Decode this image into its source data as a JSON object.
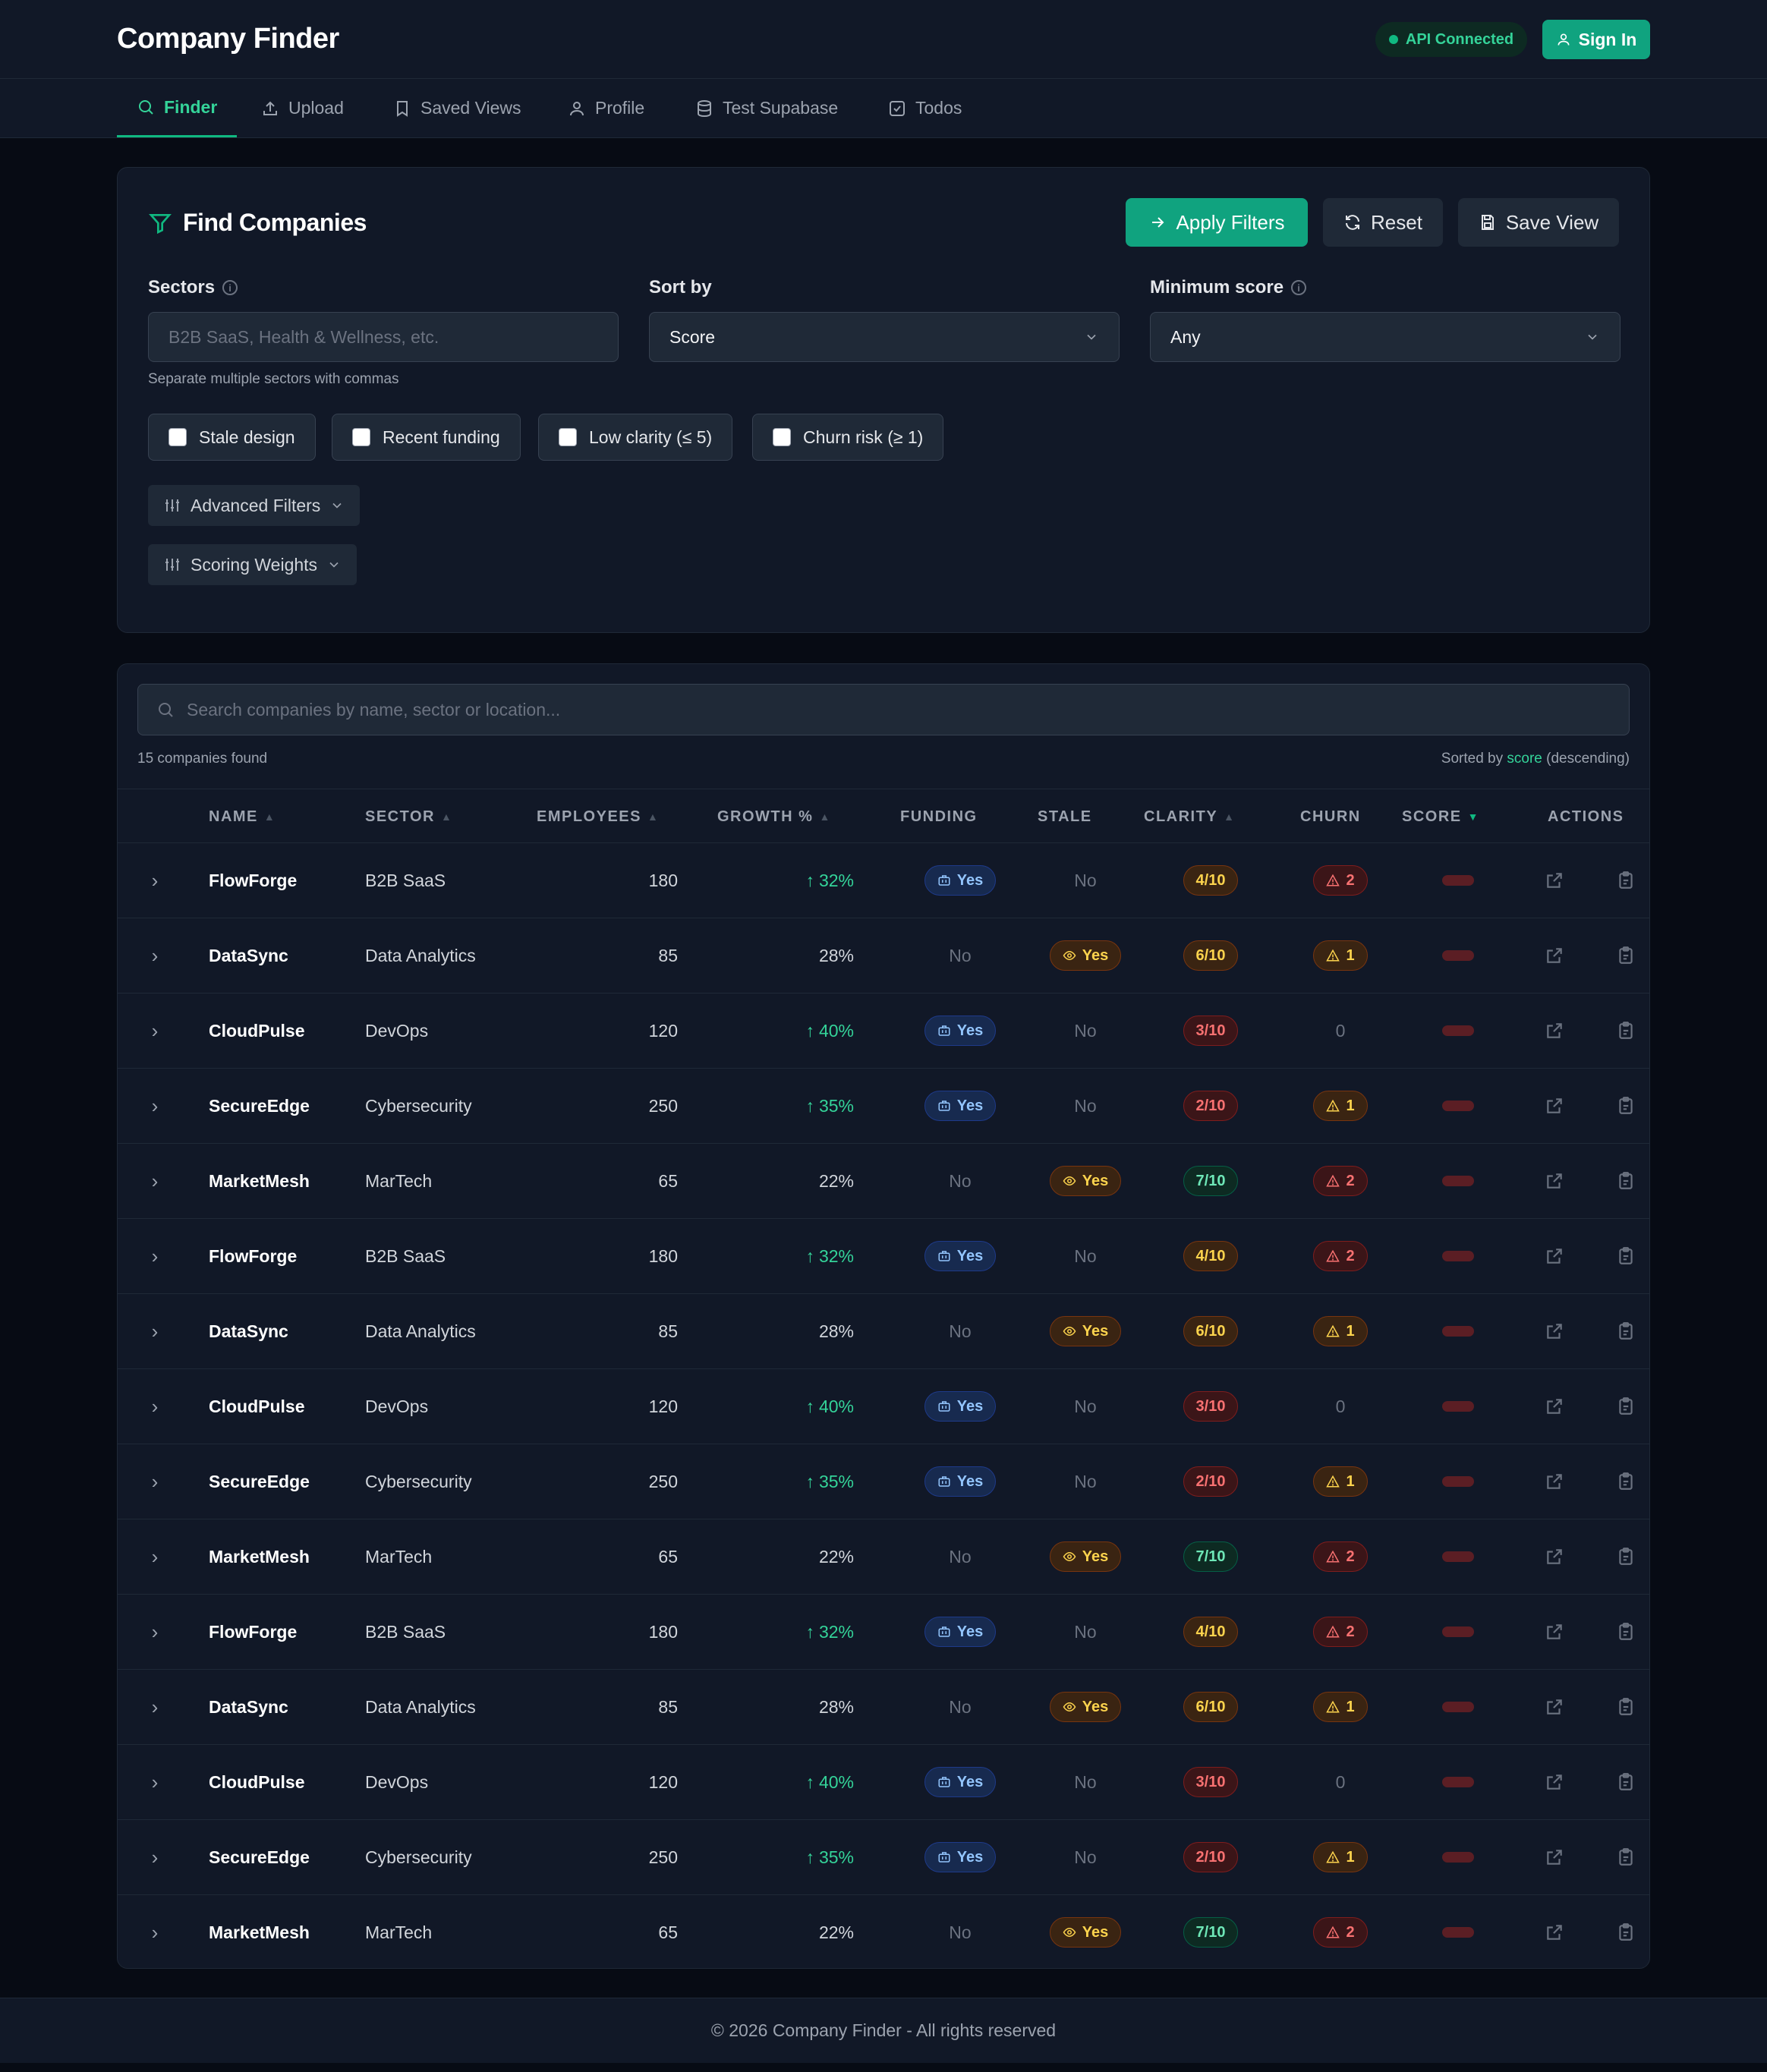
{
  "header": {
    "title": "Company Finder",
    "api_status": "API Connected",
    "signin_label": "Sign In"
  },
  "nav": {
    "tabs": [
      {
        "label": "Finder",
        "icon": "search-icon",
        "active": true
      },
      {
        "label": "Upload",
        "icon": "upload-icon",
        "active": false
      },
      {
        "label": "Saved Views",
        "icon": "bookmark-icon",
        "active": false
      },
      {
        "label": "Profile",
        "icon": "user-icon",
        "active": false
      },
      {
        "label": "Test Supabase",
        "icon": "database-icon",
        "active": false
      },
      {
        "label": "Todos",
        "icon": "checkbox-icon",
        "active": false
      }
    ]
  },
  "filters": {
    "title": "Find Companies",
    "apply_label": "Apply Filters",
    "reset_label": "Reset",
    "save_label": "Save View",
    "sectors_label": "Sectors",
    "sectors_placeholder": "B2B SaaS, Health & Wellness, etc.",
    "sectors_helper": "Separate multiple sectors with commas",
    "sort_label": "Sort by",
    "sort_value": "Score",
    "min_score_label": "Minimum score",
    "min_score_value": "Any",
    "checkboxes": [
      "Stale design",
      "Recent funding",
      "Low clarity (≤ 5)",
      "Churn risk (≥ 1)"
    ],
    "advanced_label": "Advanced Filters",
    "weights_label": "Scoring Weights"
  },
  "results": {
    "search_placeholder": "Search companies by name, sector or location...",
    "count_text": "15 companies found",
    "sorted_prefix": "Sorted by",
    "sorted_field": "score",
    "sorted_suffix": "(descending)",
    "columns": [
      "NAME",
      "SECTOR",
      "EMPLOYEES",
      "GROWTH %",
      "FUNDING",
      "STALE",
      "CLARITY",
      "CHURN",
      "SCORE",
      "ACTIONS"
    ],
    "rows": [
      {
        "name": "FlowForge",
        "sector": "B2B SaaS",
        "employees": "180",
        "growth": "32%",
        "growth_up": true,
        "funding": "Yes",
        "stale": "No",
        "clarity": "4/10",
        "clarity_level": "amber",
        "churn": "2",
        "churn_level": "red"
      },
      {
        "name": "DataSync",
        "sector": "Data Analytics",
        "employees": "85",
        "growth": "28%",
        "growth_up": false,
        "funding": "No",
        "stale": "Yes",
        "clarity": "6/10",
        "clarity_level": "amber",
        "churn": "1",
        "churn_level": "amber"
      },
      {
        "name": "CloudPulse",
        "sector": "DevOps",
        "employees": "120",
        "growth": "40%",
        "growth_up": true,
        "funding": "Yes",
        "stale": "No",
        "clarity": "3/10",
        "clarity_level": "red",
        "churn": "0",
        "churn_level": "none"
      },
      {
        "name": "SecureEdge",
        "sector": "Cybersecurity",
        "employees": "250",
        "growth": "35%",
        "growth_up": true,
        "funding": "Yes",
        "stale": "No",
        "clarity": "2/10",
        "clarity_level": "red",
        "churn": "1",
        "churn_level": "amber"
      },
      {
        "name": "MarketMesh",
        "sector": "MarTech",
        "employees": "65",
        "growth": "22%",
        "growth_up": false,
        "funding": "No",
        "stale": "Yes",
        "clarity": "7/10",
        "clarity_level": "green",
        "churn": "2",
        "churn_level": "red"
      },
      {
        "name": "FlowForge",
        "sector": "B2B SaaS",
        "employees": "180",
        "growth": "32%",
        "growth_up": true,
        "funding": "Yes",
        "stale": "No",
        "clarity": "4/10",
        "clarity_level": "amber",
        "churn": "2",
        "churn_level": "red"
      },
      {
        "name": "DataSync",
        "sector": "Data Analytics",
        "employees": "85",
        "growth": "28%",
        "growth_up": false,
        "funding": "No",
        "stale": "Yes",
        "clarity": "6/10",
        "clarity_level": "amber",
        "churn": "1",
        "churn_level": "amber"
      },
      {
        "name": "CloudPulse",
        "sector": "DevOps",
        "employees": "120",
        "growth": "40%",
        "growth_up": true,
        "funding": "Yes",
        "stale": "No",
        "clarity": "3/10",
        "clarity_level": "red",
        "churn": "0",
        "churn_level": "none"
      },
      {
        "name": "SecureEdge",
        "sector": "Cybersecurity",
        "employees": "250",
        "growth": "35%",
        "growth_up": true,
        "funding": "Yes",
        "stale": "No",
        "clarity": "2/10",
        "clarity_level": "red",
        "churn": "1",
        "churn_level": "amber"
      },
      {
        "name": "MarketMesh",
        "sector": "MarTech",
        "employees": "65",
        "growth": "22%",
        "growth_up": false,
        "funding": "No",
        "stale": "Yes",
        "clarity": "7/10",
        "clarity_level": "green",
        "churn": "2",
        "churn_level": "red"
      },
      {
        "name": "FlowForge",
        "sector": "B2B SaaS",
        "employees": "180",
        "growth": "32%",
        "growth_up": true,
        "funding": "Yes",
        "stale": "No",
        "clarity": "4/10",
        "clarity_level": "amber",
        "churn": "2",
        "churn_level": "red"
      },
      {
        "name": "DataSync",
        "sector": "Data Analytics",
        "employees": "85",
        "growth": "28%",
        "growth_up": false,
        "funding": "No",
        "stale": "Yes",
        "clarity": "6/10",
        "clarity_level": "amber",
        "churn": "1",
        "churn_level": "amber"
      },
      {
        "name": "CloudPulse",
        "sector": "DevOps",
        "employees": "120",
        "growth": "40%",
        "growth_up": true,
        "funding": "Yes",
        "stale": "No",
        "clarity": "3/10",
        "clarity_level": "red",
        "churn": "0",
        "churn_level": "none"
      },
      {
        "name": "SecureEdge",
        "sector": "Cybersecurity",
        "employees": "250",
        "growth": "35%",
        "growth_up": true,
        "funding": "Yes",
        "stale": "No",
        "clarity": "2/10",
        "clarity_level": "red",
        "churn": "1",
        "churn_level": "amber"
      },
      {
        "name": "MarketMesh",
        "sector": "MarTech",
        "employees": "65",
        "growth": "22%",
        "growth_up": false,
        "funding": "No",
        "stale": "Yes",
        "clarity": "7/10",
        "clarity_level": "green",
        "churn": "2",
        "churn_level": "red"
      }
    ]
  },
  "footer": {
    "text": "© 2026 Company Finder - All rights reserved"
  },
  "colors": {
    "accent": "#10b981",
    "background": "#070b14",
    "surface": "#111827"
  }
}
